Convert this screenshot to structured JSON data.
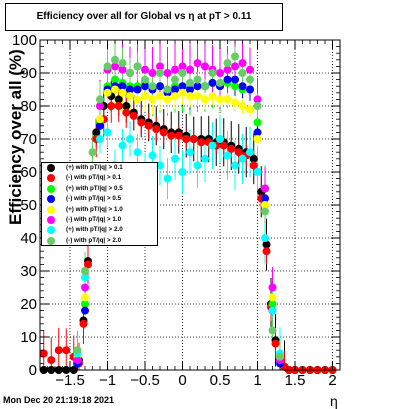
{
  "title": "Efficiency over all for Global vs   η at pT > 0.11",
  "datestamp": "Mon Dec 20 21:19:18 2021",
  "chart_data": {
    "type": "scatter",
    "title": "Efficiency over all for Global vs   η at pT > 0.11",
    "xlabel": "η",
    "ylabel": "Efficiency over all (%)",
    "xlim": [
      -1.9,
      2.1
    ],
    "ylim": [
      0,
      100
    ],
    "xticks": [
      -1.5,
      -1,
      -0.5,
      0,
      0.5,
      1,
      1.5,
      2
    ],
    "xtick_labels": [
      "−1.5",
      "−1",
      "−0.5",
      "0",
      "0.5",
      "1",
      "1.5",
      "2"
    ],
    "yticks": [
      0,
      10,
      20,
      30,
      40,
      50,
      60,
      70,
      80,
      90,
      100
    ],
    "ytick_labels": [
      "0",
      "10",
      "20",
      "30",
      "40",
      "50",
      "60",
      "70",
      "80",
      "90",
      "100"
    ],
    "grid": true,
    "legend_position": "middle-left",
    "series": [
      {
        "name": "(+) with pT/|q| > 0.1",
        "color": "#000000",
        "x": [
          -1.85,
          -1.75,
          -1.65,
          -1.55,
          -1.45,
          -1.38,
          -1.32,
          -1.26,
          -1.2,
          -1.15,
          -1.05,
          -0.95,
          -0.85,
          -0.75,
          -0.65,
          -0.55,
          -0.45,
          -0.35,
          -0.25,
          -0.15,
          -0.05,
          0.05,
          0.15,
          0.25,
          0.35,
          0.45,
          0.55,
          0.65,
          0.75,
          0.85,
          0.95,
          1.05,
          1.12,
          1.18,
          1.24,
          1.3,
          1.36,
          1.42,
          1.5,
          1.6,
          1.7,
          1.8,
          1.9,
          2.0
        ],
        "y": [
          0,
          0,
          0,
          0,
          0,
          3,
          15,
          33,
          58,
          72,
          80,
          83,
          82,
          80,
          78,
          76,
          75,
          74,
          73,
          72,
          72,
          71,
          70,
          70,
          70,
          69,
          69,
          68,
          67,
          66,
          64,
          54,
          38,
          20,
          9,
          3,
          1,
          0,
          0,
          0,
          0,
          0,
          0,
          0
        ]
      },
      {
        "name": "(-) with pT/|q| > 0.1",
        "color": "#ff0000",
        "x": [
          -1.85,
          -1.75,
          -1.65,
          -1.55,
          -1.45,
          -1.38,
          -1.32,
          -1.26,
          -1.2,
          -1.15,
          -1.05,
          -0.95,
          -0.85,
          -0.75,
          -0.65,
          -0.55,
          -0.45,
          -0.35,
          -0.25,
          -0.15,
          -0.05,
          0.05,
          0.15,
          0.25,
          0.35,
          0.45,
          0.55,
          0.65,
          0.75,
          0.85,
          0.95,
          1.05,
          1.12,
          1.18,
          1.24,
          1.3,
          1.36,
          1.42,
          1.5,
          1.6,
          1.7,
          1.8,
          1.9,
          2.0
        ],
        "y": [
          5,
          3,
          6,
          6,
          4,
          2,
          14,
          32,
          56,
          70,
          76,
          80,
          80,
          78,
          77,
          75,
          74,
          73,
          72,
          71,
          71,
          70,
          70,
          69,
          69,
          68,
          68,
          67,
          66,
          65,
          62,
          52,
          36,
          19,
          8,
          3,
          1,
          0,
          0,
          0,
          0,
          0,
          0,
          0
        ]
      },
      {
        "name": "(+) with pT/|q| > 0.5",
        "color": "#00ff00",
        "x": [
          -1.4,
          -1.3,
          -1.2,
          -1.1,
          -1.0,
          -0.9,
          -0.8,
          -0.7,
          -0.6,
          -0.5,
          -0.4,
          -0.3,
          -0.2,
          -0.1,
          0.0,
          0.1,
          0.2,
          0.3,
          0.4,
          0.5,
          0.6,
          0.7,
          0.8,
          0.9,
          1.0,
          1.1,
          1.2,
          1.3
        ],
        "y": [
          3,
          20,
          55,
          75,
          86,
          88,
          87,
          86,
          86,
          87,
          85,
          86,
          85,
          86,
          86,
          85,
          86,
          86,
          87,
          86,
          87,
          86,
          85,
          85,
          75,
          55,
          20,
          3
        ]
      },
      {
        "name": "(-) with pT/|q| > 0.5",
        "color": "#0000ff",
        "x": [
          -1.4,
          -1.3,
          -1.2,
          -1.1,
          -1.0,
          -0.9,
          -0.8,
          -0.7,
          -0.6,
          -0.5,
          -0.4,
          -0.3,
          -0.2,
          -0.1,
          0.0,
          0.1,
          0.2,
          0.3,
          0.4,
          0.5,
          0.6,
          0.7,
          0.8,
          0.9,
          1.0,
          1.1,
          1.2,
          1.3
        ],
        "y": [
          2,
          18,
          53,
          74,
          85,
          86,
          86,
          85,
          85,
          86,
          85,
          86,
          84,
          85,
          86,
          85,
          86,
          86,
          87,
          86,
          88,
          88,
          86,
          85,
          72,
          52,
          18,
          2
        ]
      },
      {
        "name": "(+) with pT/|q| > 1.0",
        "color": "#ffff00",
        "x": [
          -1.4,
          -1.3,
          -1.2,
          -1.1,
          -1.0,
          -0.9,
          -0.8,
          -0.7,
          -0.6,
          -0.5,
          -0.4,
          -0.3,
          -0.2,
          -0.1,
          0.0,
          0.1,
          0.2,
          0.3,
          0.4,
          0.5,
          0.6,
          0.7,
          0.8,
          0.9,
          1.0,
          1.1,
          1.2,
          1.3
        ],
        "y": [
          4,
          22,
          57,
          76,
          84,
          85,
          84,
          83,
          82,
          83,
          82,
          83,
          82,
          83,
          84,
          83,
          83,
          82,
          83,
          82,
          82,
          81,
          80,
          79,
          70,
          50,
          22,
          4
        ]
      },
      {
        "name": "(-) with pT/|q| > 1.0",
        "color": "#ff00ff",
        "x": [
          -1.4,
          -1.3,
          -1.2,
          -1.1,
          -1.0,
          -0.9,
          -0.8,
          -0.7,
          -0.6,
          -0.5,
          -0.4,
          -0.3,
          -0.2,
          -0.1,
          0.0,
          0.1,
          0.2,
          0.3,
          0.4,
          0.5,
          0.6,
          0.7,
          0.8,
          0.9,
          1.0,
          1.1,
          1.2,
          1.3
        ],
        "y": [
          3,
          25,
          60,
          80,
          91,
          92,
          91,
          90,
          92,
          91,
          90,
          92,
          90,
          91,
          92,
          91,
          93,
          92,
          91,
          90,
          91,
          92,
          93,
          91,
          82,
          55,
          25,
          3
        ]
      },
      {
        "name": "(+) with pT/|q| > 2.0",
        "color": "#00ffff",
        "x": [
          -1.4,
          -1.3,
          -1.2,
          -1.1,
          -1.0,
          -0.9,
          -0.8,
          -0.7,
          -0.6,
          -0.5,
          -0.4,
          -0.3,
          -0.2,
          -0.1,
          0.0,
          0.1,
          0.2,
          0.3,
          0.4,
          0.5,
          0.6,
          0.7,
          0.8,
          0.9,
          1.0,
          1.1,
          1.2,
          1.3
        ],
        "y": [
          5,
          28,
          60,
          70,
          72,
          62,
          68,
          70,
          66,
          60,
          65,
          62,
          58,
          64,
          60,
          66,
          62,
          64,
          68,
          70,
          65,
          62,
          64,
          66,
          60,
          40,
          18,
          5
        ]
      },
      {
        "name": "(-) with pT/|q| > 2.0",
        "color": "#66cc66",
        "x": [
          -1.4,
          -1.3,
          -1.2,
          -1.1,
          -1.0,
          -0.9,
          -0.8,
          -0.7,
          -0.6,
          -0.5,
          -0.4,
          -0.3,
          -0.2,
          -0.1,
          0.0,
          0.1,
          0.2,
          0.3,
          0.4,
          0.5,
          0.6,
          0.7,
          0.8,
          0.9,
          1.0,
          1.1,
          1.2,
          1.3
        ],
        "y": [
          6,
          30,
          66,
          82,
          92,
          94,
          93,
          90,
          92,
          88,
          86,
          90,
          85,
          88,
          90,
          87,
          88,
          86,
          90,
          87,
          93,
          95,
          90,
          88,
          80,
          48,
          12,
          4
        ]
      }
    ]
  }
}
